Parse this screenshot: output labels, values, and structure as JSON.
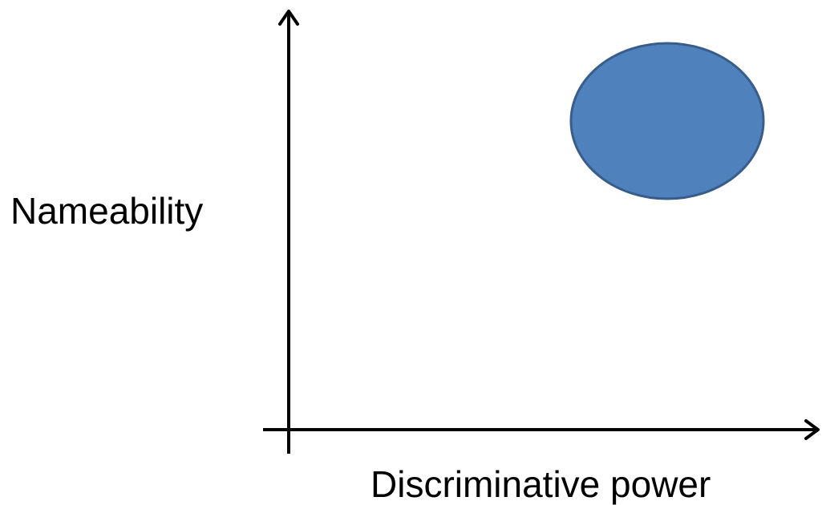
{
  "axes": {
    "y_label": "Nameability",
    "x_label": "Discriminative power"
  },
  "region": {
    "fill_color": "#4f81bd",
    "stroke_color": "#385d8a"
  }
}
